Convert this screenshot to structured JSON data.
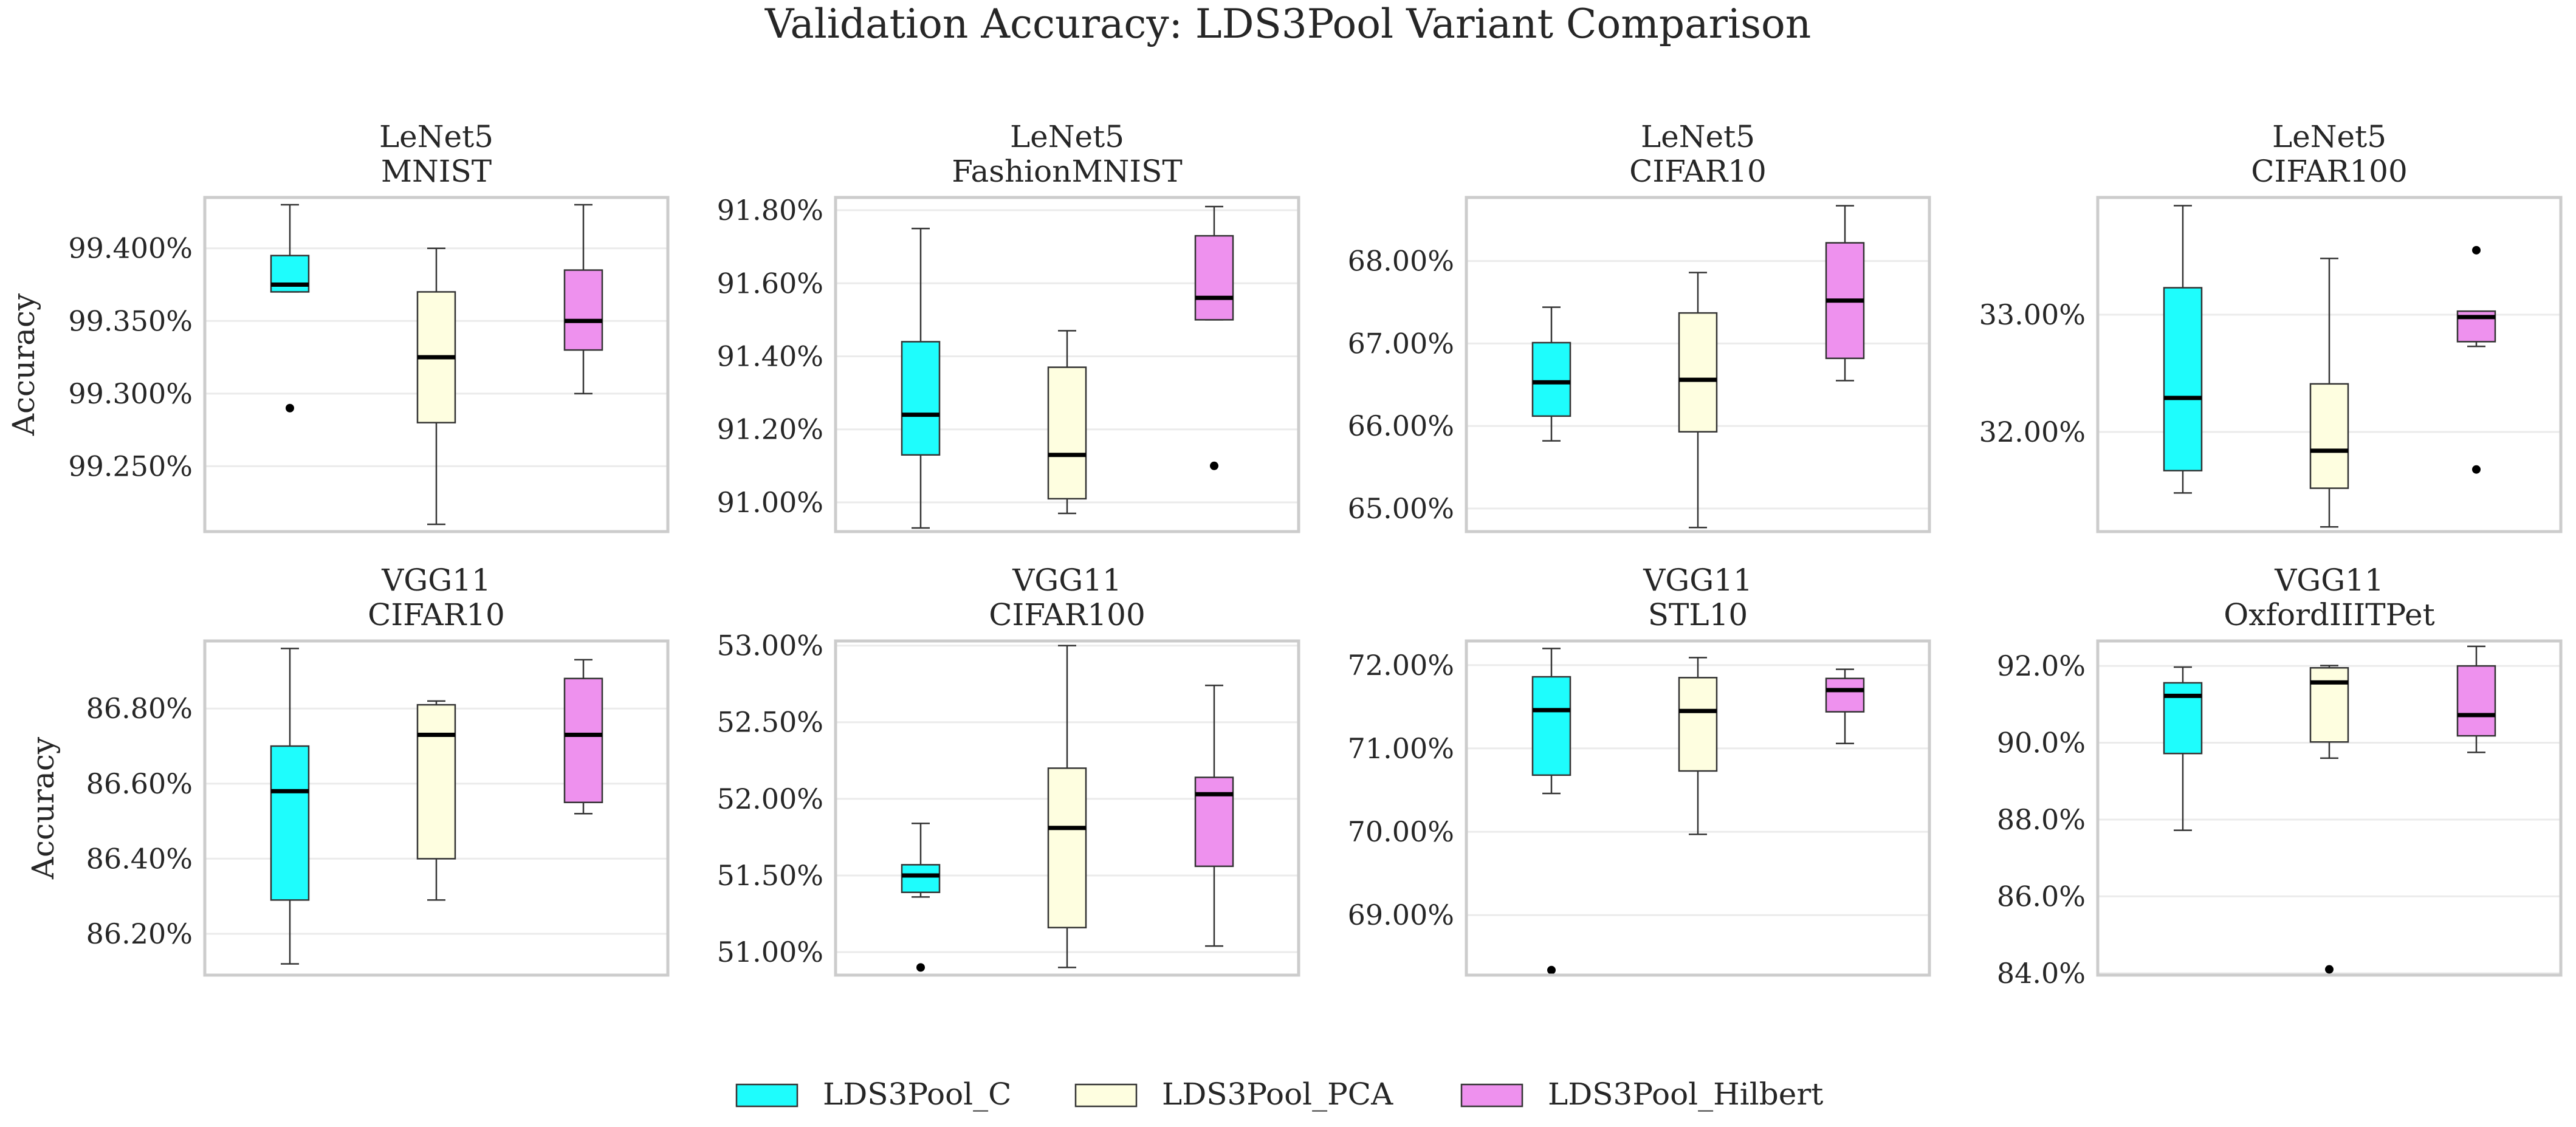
{
  "chart_data": {
    "type": "box",
    "title": "Validation Accuracy: LDS3Pool Variant Comparison",
    "ylabel": "Accuracy",
    "series_names": [
      "LDS3Pool_C",
      "LDS3Pool_PCA",
      "LDS3Pool_Hilbert"
    ],
    "colors": {
      "LDS3Pool_C": "#1efdfd",
      "LDS3Pool_PCA": "#fefee0",
      "LDS3Pool_Hilbert": "#ee91ee"
    },
    "legend_placement": "bottom-center",
    "grid": true,
    "panels": [
      {
        "model": "LeNet5",
        "dataset": "MNIST",
        "ylabel": "Accuracy",
        "ylim": [
          99.205,
          99.435
        ],
        "yticks": [
          99.25,
          99.3,
          99.35,
          99.4
        ],
        "ytick_labels": [
          "99.250%",
          "99.300%",
          "99.350%",
          "99.400%"
        ],
        "boxes": [
          {
            "series": "LDS3Pool_C",
            "whisker_low": 99.37,
            "q1": 99.37,
            "median": 99.375,
            "q3": 99.395,
            "whisker_high": 99.43,
            "outliers": [
              99.29
            ]
          },
          {
            "series": "LDS3Pool_PCA",
            "whisker_low": 99.21,
            "q1": 99.28,
            "median": 99.325,
            "q3": 99.37,
            "whisker_high": 99.4,
            "outliers": []
          },
          {
            "series": "LDS3Pool_Hilbert",
            "whisker_low": 99.3,
            "q1": 99.33,
            "median": 99.35,
            "q3": 99.385,
            "whisker_high": 99.43,
            "outliers": []
          }
        ]
      },
      {
        "model": "LeNet5",
        "dataset": "FashionMNIST",
        "ylabel": "",
        "ylim": [
          90.92,
          91.835
        ],
        "yticks": [
          91.0,
          91.2,
          91.4,
          91.6,
          91.8
        ],
        "ytick_labels": [
          "91.00%",
          "91.20%",
          "91.40%",
          "91.60%",
          "91.80%"
        ],
        "boxes": [
          {
            "series": "LDS3Pool_C",
            "whisker_low": 90.93,
            "q1": 91.13,
            "median": 91.24,
            "q3": 91.44,
            "whisker_high": 91.75,
            "outliers": []
          },
          {
            "series": "LDS3Pool_PCA",
            "whisker_low": 90.97,
            "q1": 91.01,
            "median": 91.13,
            "q3": 91.37,
            "whisker_high": 91.47,
            "outliers": []
          },
          {
            "series": "LDS3Pool_Hilbert",
            "whisker_low": 91.5,
            "q1": 91.5,
            "median": 91.56,
            "q3": 91.73,
            "whisker_high": 91.81,
            "outliers": [
              91.1
            ]
          }
        ]
      },
      {
        "model": "LeNet5",
        "dataset": "CIFAR10",
        "ylabel": "",
        "ylim": [
          64.72,
          68.77
        ],
        "yticks": [
          65.0,
          66.0,
          67.0,
          68.0
        ],
        "ytick_labels": [
          "65.00%",
          "66.00%",
          "67.00%",
          "68.00%"
        ],
        "boxes": [
          {
            "series": "LDS3Pool_C",
            "whisker_low": 65.82,
            "q1": 66.12,
            "median": 66.53,
            "q3": 67.01,
            "whisker_high": 67.44,
            "outliers": []
          },
          {
            "series": "LDS3Pool_PCA",
            "whisker_low": 64.77,
            "q1": 65.93,
            "median": 66.56,
            "q3": 67.37,
            "whisker_high": 67.86,
            "outliers": []
          },
          {
            "series": "LDS3Pool_Hilbert",
            "whisker_low": 66.55,
            "q1": 66.82,
            "median": 67.52,
            "q3": 68.22,
            "whisker_high": 68.67,
            "outliers": []
          }
        ]
      },
      {
        "model": "LeNet5",
        "dataset": "CIFAR100",
        "ylabel": "",
        "ylim": [
          31.15,
          34.0
        ],
        "yticks": [
          32.0,
          33.0
        ],
        "ytick_labels": [
          "32.00%",
          "33.00%"
        ],
        "boxes": [
          {
            "series": "LDS3Pool_C",
            "whisker_low": 31.48,
            "q1": 31.67,
            "median": 32.29,
            "q3": 33.23,
            "whisker_high": 33.93,
            "outliers": []
          },
          {
            "series": "LDS3Pool_PCA",
            "whisker_low": 31.19,
            "q1": 31.52,
            "median": 31.84,
            "q3": 32.41,
            "whisker_high": 33.48,
            "outliers": []
          },
          {
            "series": "LDS3Pool_Hilbert",
            "whisker_low": 32.73,
            "q1": 32.77,
            "median": 32.98,
            "q3": 33.03,
            "whisker_high": 33.03,
            "outliers": [
              33.55,
              31.68
            ]
          }
        ]
      },
      {
        "model": "VGG11",
        "dataset": "CIFAR10",
        "ylabel": "Accuracy",
        "ylim": [
          86.09,
          86.98
        ],
        "yticks": [
          86.2,
          86.4,
          86.6,
          86.8
        ],
        "ytick_labels": [
          "86.20%",
          "86.40%",
          "86.60%",
          "86.80%"
        ],
        "boxes": [
          {
            "series": "LDS3Pool_C",
            "whisker_low": 86.12,
            "q1": 86.29,
            "median": 86.58,
            "q3": 86.7,
            "whisker_high": 86.96,
            "outliers": []
          },
          {
            "series": "LDS3Pool_PCA",
            "whisker_low": 86.29,
            "q1": 86.4,
            "median": 86.73,
            "q3": 86.81,
            "whisker_high": 86.82,
            "outliers": []
          },
          {
            "series": "LDS3Pool_Hilbert",
            "whisker_low": 86.52,
            "q1": 86.55,
            "median": 86.73,
            "q3": 86.88,
            "whisker_high": 86.93,
            "outliers": []
          }
        ]
      },
      {
        "model": "VGG11",
        "dataset": "CIFAR100",
        "ylabel": "",
        "ylim": [
          50.85,
          53.03
        ],
        "yticks": [
          51.0,
          51.5,
          52.0,
          52.5,
          53.0
        ],
        "ytick_labels": [
          "51.00%",
          "51.50%",
          "52.00%",
          "52.50%",
          "53.00%"
        ],
        "boxes": [
          {
            "series": "LDS3Pool_C",
            "whisker_low": 51.36,
            "q1": 51.39,
            "median": 51.5,
            "q3": 51.57,
            "whisker_high": 51.84,
            "outliers": [
              50.9
            ]
          },
          {
            "series": "LDS3Pool_PCA",
            "whisker_low": 50.9,
            "q1": 51.16,
            "median": 51.81,
            "q3": 52.2,
            "whisker_high": 53.0,
            "outliers": []
          },
          {
            "series": "LDS3Pool_Hilbert",
            "whisker_low": 51.04,
            "q1": 51.56,
            "median": 52.03,
            "q3": 52.14,
            "whisker_high": 52.74,
            "outliers": []
          }
        ]
      },
      {
        "model": "VGG11",
        "dataset": "STL10",
        "ylabel": "",
        "ylim": [
          68.28,
          72.29
        ],
        "yticks": [
          69.0,
          70.0,
          71.0,
          72.0
        ],
        "ytick_labels": [
          "69.00%",
          "70.00%",
          "71.00%",
          "72.00%"
        ],
        "boxes": [
          {
            "series": "LDS3Pool_C",
            "whisker_low": 70.46,
            "q1": 70.68,
            "median": 71.46,
            "q3": 71.86,
            "whisker_high": 72.2,
            "outliers": [
              68.34
            ]
          },
          {
            "series": "LDS3Pool_PCA",
            "whisker_low": 69.97,
            "q1": 70.73,
            "median": 71.45,
            "q3": 71.85,
            "whisker_high": 72.09,
            "outliers": []
          },
          {
            "series": "LDS3Pool_Hilbert",
            "whisker_low": 71.06,
            "q1": 71.44,
            "median": 71.7,
            "q3": 71.84,
            "whisker_high": 71.95,
            "outliers": []
          }
        ]
      },
      {
        "model": "VGG11",
        "dataset": "OxfordIIITPet",
        "ylabel": "",
        "ylim": [
          83.95,
          92.65
        ],
        "yticks": [
          84.0,
          86.0,
          88.0,
          90.0,
          92.0
        ],
        "ytick_labels": [
          "84.0%",
          "86.0%",
          "88.0%",
          "90.0%",
          "92.0%"
        ],
        "boxes": [
          {
            "series": "LDS3Pool_C",
            "whisker_low": 87.72,
            "q1": 89.72,
            "median": 91.22,
            "q3": 91.56,
            "whisker_high": 91.97,
            "outliers": []
          },
          {
            "series": "LDS3Pool_PCA",
            "whisker_low": 89.6,
            "q1": 90.02,
            "median": 91.57,
            "q3": 91.95,
            "whisker_high": 92.01,
            "outliers": [
              84.1
            ]
          },
          {
            "series": "LDS3Pool_Hilbert",
            "whisker_low": 89.75,
            "q1": 90.18,
            "median": 90.72,
            "q3": 92.0,
            "whisker_high": 92.51,
            "outliers": []
          }
        ]
      }
    ]
  }
}
